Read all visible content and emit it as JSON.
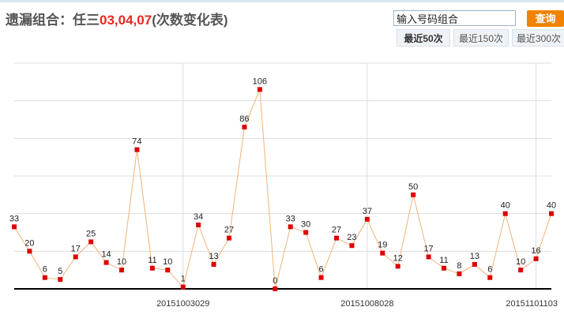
{
  "header": {
    "title_prefix": "遗漏组合：任三",
    "title_combo": "03,04,07",
    "title_suffix": "(次数变化表)"
  },
  "search": {
    "placeholder": "输入号码组合",
    "button_label": "查询"
  },
  "range_tabs": [
    {
      "label": "最近50次",
      "active": true
    },
    {
      "label": "最近150次",
      "active": false
    },
    {
      "label": "最近300次",
      "active": false
    }
  ],
  "colors": {
    "point": "#dd0000",
    "line": "#f2b27a",
    "accent": "#f08300",
    "grid": "#dddddd"
  },
  "chart_data": {
    "type": "line",
    "values": [
      33,
      20,
      6,
      5,
      17,
      25,
      14,
      10,
      74,
      11,
      10,
      1,
      34,
      13,
      27,
      86,
      106,
      0,
      33,
      30,
      6,
      27,
      23,
      37,
      19,
      12,
      50,
      17,
      11,
      8,
      13,
      6,
      40,
      10,
      16,
      40
    ],
    "x_tick_labels": [
      {
        "label": "20151003029",
        "index": 11
      },
      {
        "label": "20151008028",
        "index": 23
      },
      {
        "label": "20151101103",
        "index": 34
      }
    ],
    "ylim": [
      0,
      120
    ],
    "grid": true
  }
}
